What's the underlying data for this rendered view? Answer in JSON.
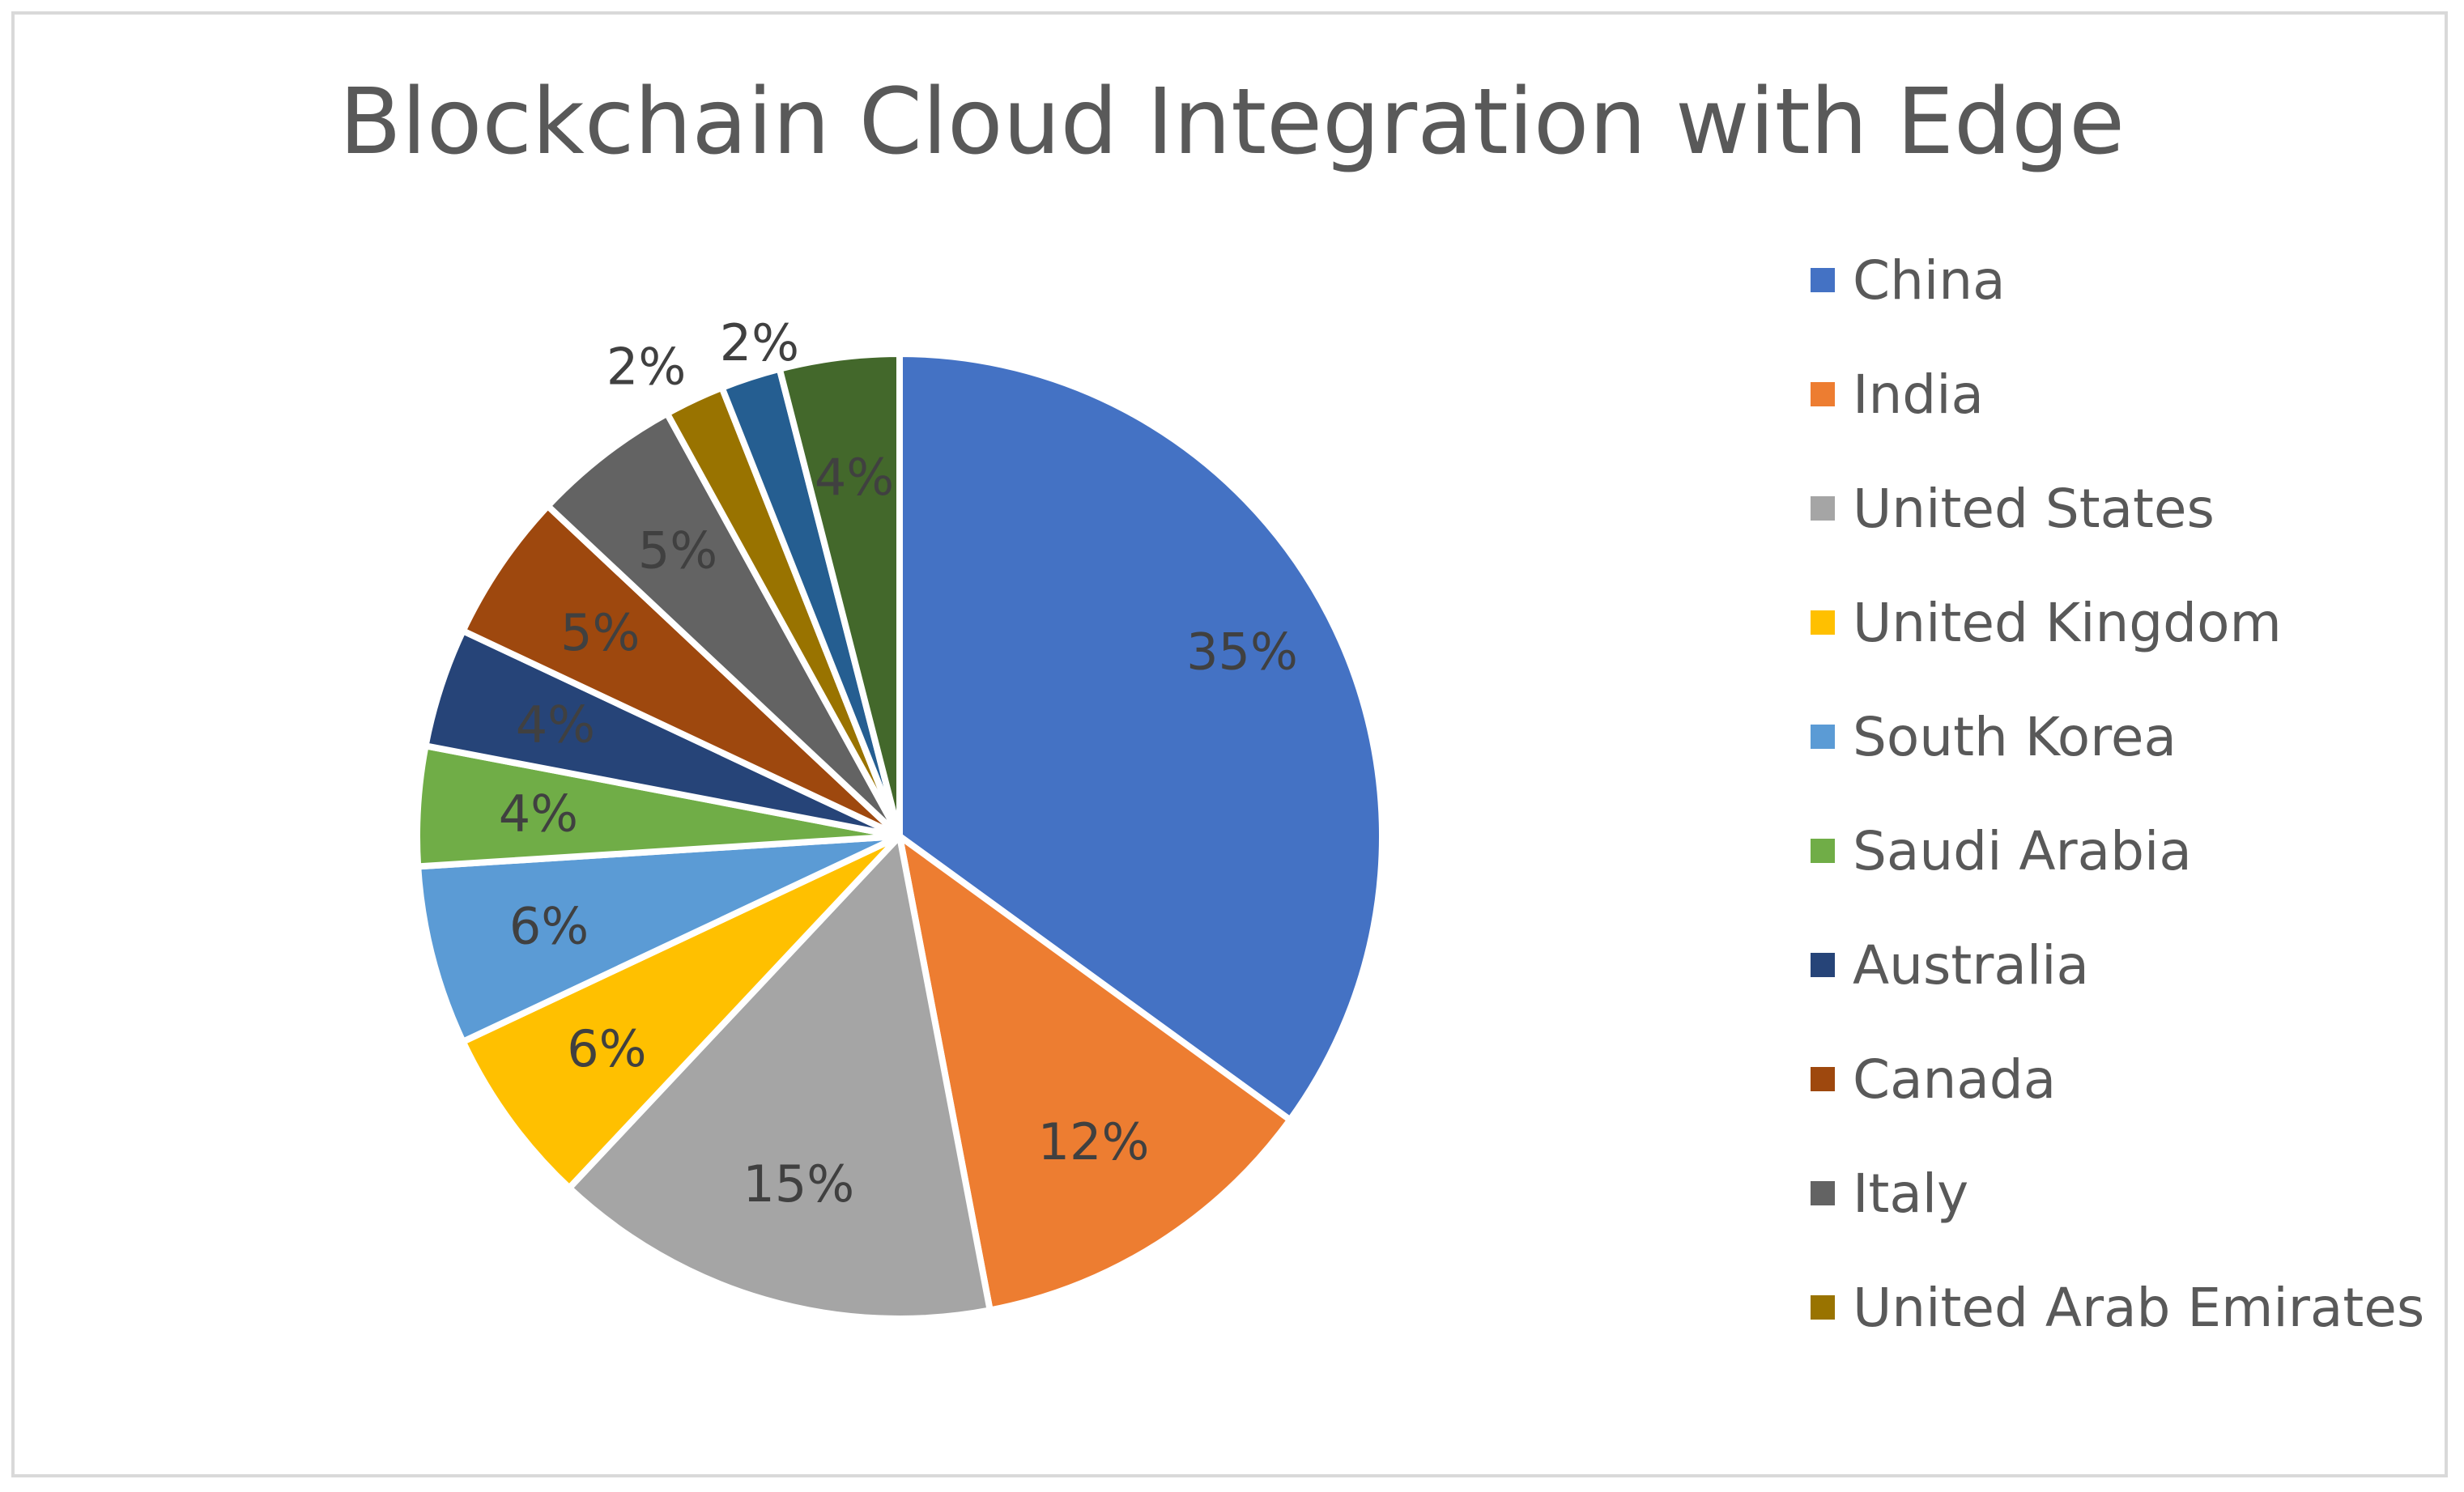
{
  "chart_data": {
    "type": "pie",
    "title": "Blockchain Cloud Integration with Edge",
    "categories": [
      "China",
      "India",
      "United States",
      "United Kingdom",
      "South Korea",
      "Saudi Arabia",
      "Australia",
      "Canada",
      "Italy",
      "United Arab Emirates",
      "",
      ""
    ],
    "values": [
      35,
      12,
      15,
      6,
      6,
      4,
      4,
      5,
      5,
      2,
      2,
      4
    ],
    "labels": [
      "35%",
      "12%",
      "15%",
      "6%",
      "6%",
      "4%",
      "4%",
      "5%",
      "5%",
      "2%",
      "2%",
      "4%"
    ],
    "colors": [
      "#4472C4",
      "#ED7D31",
      "#A5A5A5",
      "#FFC000",
      "#5B9BD5",
      "#70AD47",
      "#264478",
      "#9E480E",
      "#636363",
      "#997300",
      "#255E91",
      "#43682B"
    ],
    "legend_visible_count": 10,
    "legend_position": "right",
    "label_color": "#404040",
    "title_color": "#595959"
  }
}
